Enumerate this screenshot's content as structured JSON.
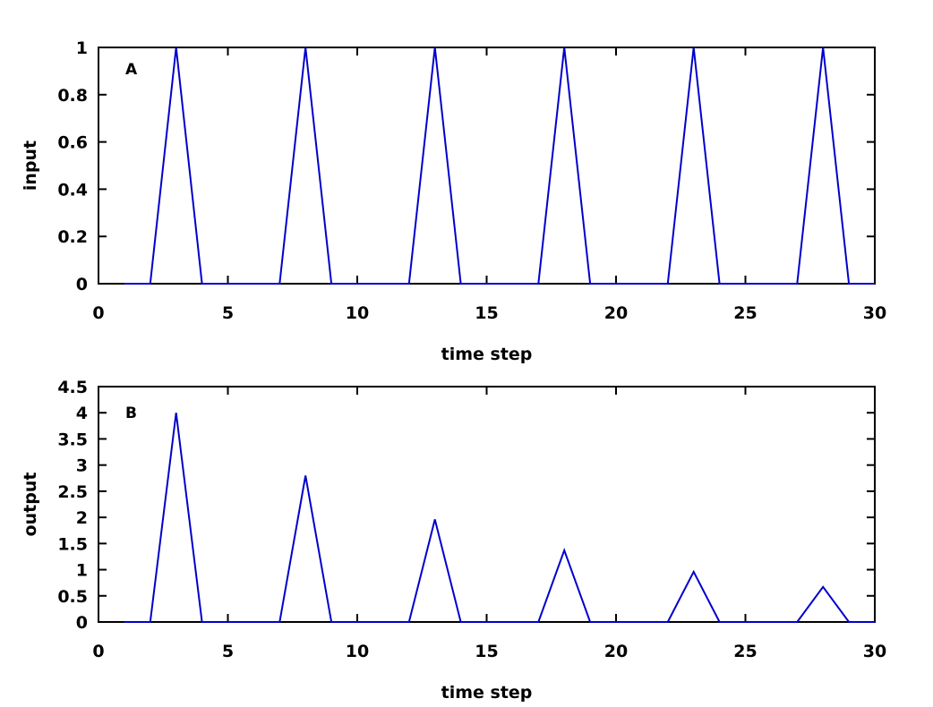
{
  "chart_data": [
    {
      "type": "line",
      "panel_label": "A",
      "xlabel": "time step",
      "ylabel": "input",
      "xlim": [
        0,
        30
      ],
      "ylim": [
        0,
        1
      ],
      "xticks": [
        "0",
        "5",
        "10",
        "15",
        "20",
        "25",
        "30"
      ],
      "yticks": [
        "0",
        "0.2",
        "0.4",
        "0.6",
        "0.8",
        "1"
      ],
      "grid": false,
      "series": [
        {
          "color": "#0000cc",
          "x": [
            1,
            2,
            3,
            4,
            7,
            8,
            9,
            12,
            13,
            14,
            17,
            18,
            19,
            22,
            23,
            24,
            27,
            28,
            29,
            30
          ],
          "y": [
            0,
            0,
            1,
            0,
            0,
            1,
            0,
            0,
            1,
            0,
            0,
            1,
            0,
            0,
            1,
            0,
            0,
            1,
            0,
            0
          ]
        }
      ]
    },
    {
      "type": "line",
      "panel_label": "B",
      "xlabel": "time step",
      "ylabel": "output",
      "xlim": [
        0,
        30
      ],
      "ylim": [
        0,
        4.5
      ],
      "xticks": [
        "0",
        "5",
        "10",
        "15",
        "20",
        "25",
        "30"
      ],
      "yticks": [
        "0",
        "0.5",
        "1",
        "1.5",
        "2",
        "2.5",
        "3",
        "3.5",
        "4",
        "4.5"
      ],
      "grid": false,
      "series": [
        {
          "color": "#0000cc",
          "x": [
            1,
            2,
            3,
            4,
            7,
            8,
            9,
            12,
            13,
            14,
            17,
            18,
            19,
            22,
            23,
            24,
            27,
            28,
            29,
            30
          ],
          "y": [
            0,
            0,
            4.0,
            0,
            0,
            2.8,
            0,
            0,
            1.96,
            0,
            0,
            1.37,
            0,
            0,
            0.96,
            0,
            0,
            0.67,
            0,
            0
          ]
        }
      ]
    }
  ]
}
